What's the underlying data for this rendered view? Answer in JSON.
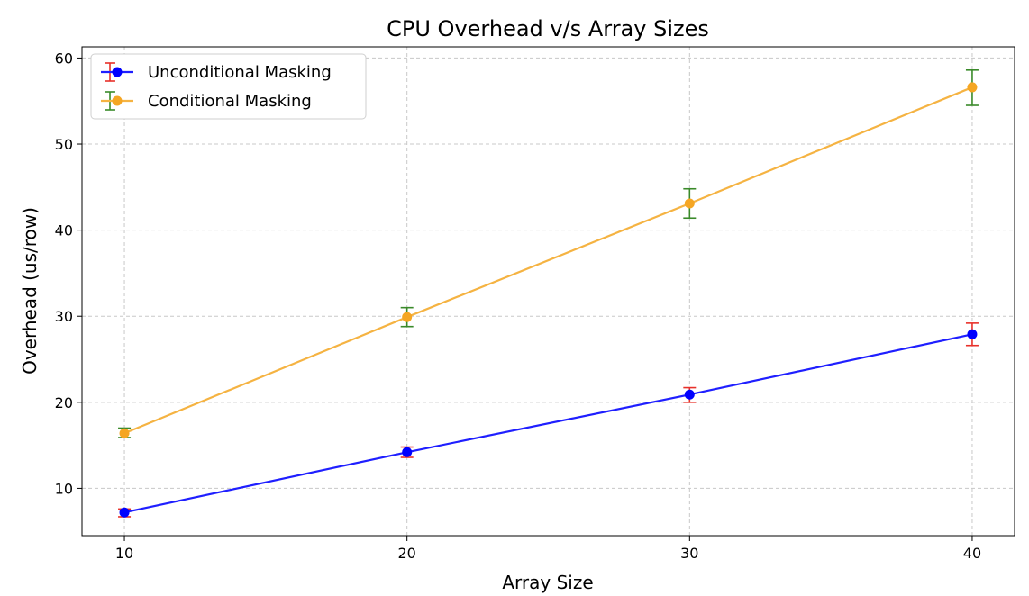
{
  "chart_data": {
    "type": "line",
    "title": "CPU Overhead v/s Array Sizes",
    "xlabel": "Array Size",
    "ylabel": "Overhead (us/row)",
    "x": [
      10,
      20,
      30,
      40
    ],
    "xlim": [
      8.5,
      41.5
    ],
    "ylim": [
      4.5,
      61.3
    ],
    "xticks": [
      10,
      20,
      30,
      40
    ],
    "yticks": [
      10,
      20,
      30,
      40,
      50,
      60
    ],
    "grid": true,
    "legend_position": "top-left",
    "series": [
      {
        "name": "Unconditional Masking",
        "values": [
          7.2,
          14.2,
          20.9,
          27.9
        ],
        "error_low": [
          6.7,
          13.6,
          20.0,
          26.6
        ],
        "error_high": [
          7.6,
          14.8,
          21.7,
          29.2
        ],
        "line_color": "#1f1fff",
        "marker_color": "#0000ff",
        "error_color": "#e8312a"
      },
      {
        "name": "Conditional Masking",
        "values": [
          16.4,
          29.9,
          43.1,
          56.6
        ],
        "error_low": [
          15.9,
          28.8,
          41.4,
          54.5
        ],
        "error_high": [
          17.0,
          31.0,
          44.8,
          58.6
        ],
        "line_color": "#f5b342",
        "marker_color": "#f5a623",
        "error_color": "#3a8a2a"
      }
    ]
  }
}
